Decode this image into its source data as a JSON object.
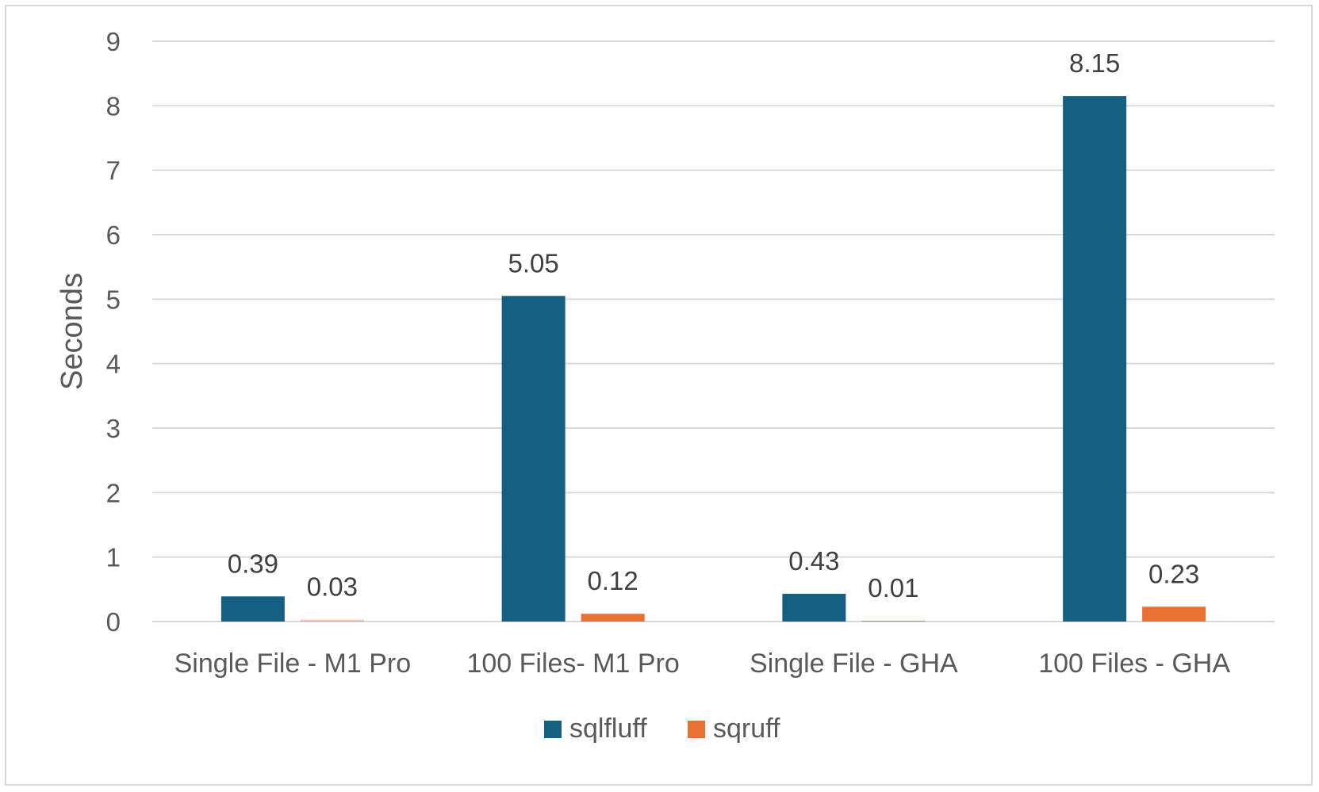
{
  "chart_data": {
    "type": "bar",
    "title": "",
    "xlabel": "",
    "ylabel": "Seconds",
    "ylim": [
      0,
      9
    ],
    "yticks": [
      0,
      1,
      2,
      3,
      4,
      5,
      6,
      7,
      8,
      9
    ],
    "grid": true,
    "legend_position": "bottom",
    "categories": [
      "Single File - M1 Pro",
      "100 Files- M1 Pro",
      "Single File - GHA",
      "100 Files - GHA"
    ],
    "series": [
      {
        "name": "sqlfluff",
        "color": "#156082",
        "values": [
          0.39,
          5.05,
          0.43,
          8.15
        ],
        "labels": [
          "0.39",
          "5.05",
          "0.43",
          "8.15"
        ]
      },
      {
        "name": "sqruff",
        "color": "#E97132",
        "values": [
          0.03,
          0.12,
          0.01,
          0.23
        ],
        "labels": [
          "0.03",
          "0.12",
          "0.01",
          "0.23"
        ]
      }
    ]
  }
}
